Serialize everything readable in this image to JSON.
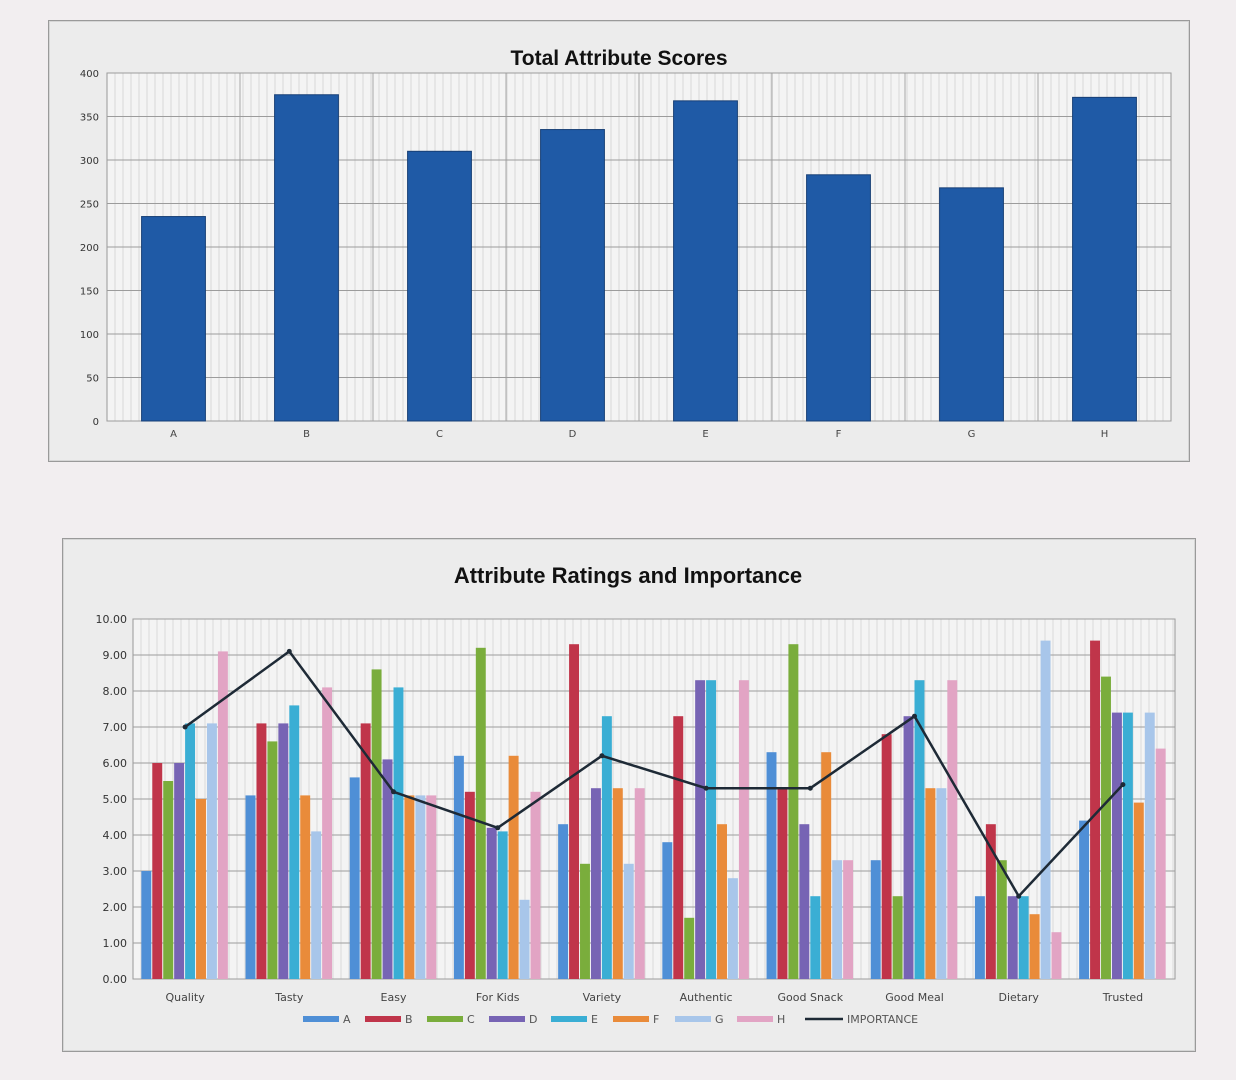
{
  "chart_data": [
    {
      "type": "bar",
      "title": "Total Attribute Scores",
      "categories": [
        "A",
        "B",
        "C",
        "D",
        "E",
        "F",
        "G",
        "H"
      ],
      "values": [
        235,
        375,
        310,
        335,
        368,
        283,
        268,
        372
      ],
      "ylim": [
        0,
        400
      ],
      "yticks": [
        "0",
        "50",
        "100",
        "150",
        "200",
        "250",
        "300",
        "350",
        "400"
      ],
      "grid": true,
      "color": "#1f5aa6"
    },
    {
      "type": "bar",
      "title": "Attribute Ratings and Importance",
      "categories": [
        "Quality",
        "Tasty",
        "Easy",
        "For Kids",
        "Variety",
        "Authentic",
        "Good Snack",
        "Good Meal",
        "Dietary",
        "Trusted"
      ],
      "ylim": [
        0,
        10
      ],
      "yticks": [
        "0.00",
        "1.00",
        "2.00",
        "3.00",
        "4.00",
        "5.00",
        "6.00",
        "7.00",
        "8.00",
        "9.00",
        "10.00"
      ],
      "grid": true,
      "legend_position": "bottom",
      "series": [
        {
          "name": "A",
          "color": "#4f8fd6",
          "values": [
            3.0,
            5.1,
            5.6,
            6.2,
            4.3,
            3.8,
            6.3,
            3.3,
            2.3,
            4.4
          ]
        },
        {
          "name": "B",
          "color": "#c0354a",
          "values": [
            6.0,
            7.1,
            7.1,
            5.2,
            9.3,
            7.3,
            5.3,
            6.8,
            4.3,
            9.4
          ]
        },
        {
          "name": "C",
          "color": "#7aad3c",
          "values": [
            5.5,
            6.6,
            8.6,
            9.2,
            3.2,
            1.7,
            9.3,
            2.3,
            3.3,
            8.4
          ]
        },
        {
          "name": "D",
          "color": "#7764b4",
          "values": [
            6.0,
            7.1,
            6.1,
            4.2,
            5.3,
            8.3,
            4.3,
            7.3,
            2.3,
            7.4
          ]
        },
        {
          "name": "E",
          "color": "#3aaed4",
          "values": [
            7.1,
            7.6,
            8.1,
            4.1,
            7.3,
            8.3,
            2.3,
            8.3,
            2.3,
            7.4
          ]
        },
        {
          "name": "F",
          "color": "#e98b3a",
          "values": [
            5.0,
            5.1,
            5.1,
            6.2,
            5.3,
            4.3,
            6.3,
            5.3,
            1.8,
            4.9
          ]
        },
        {
          "name": "G",
          "color": "#a8c6ea",
          "values": [
            7.1,
            4.1,
            5.1,
            2.2,
            3.2,
            2.8,
            3.3,
            5.3,
            9.4,
            7.4
          ]
        },
        {
          "name": "H",
          "color": "#e2a4c4",
          "values": [
            9.1,
            8.1,
            5.1,
            5.2,
            5.3,
            8.3,
            3.3,
            8.3,
            1.3,
            6.4
          ]
        }
      ],
      "importance": {
        "name": "IMPORTANCE",
        "color": "#1e2a36",
        "values": [
          7.0,
          9.1,
          5.2,
          4.2,
          6.2,
          5.3,
          5.3,
          7.3,
          2.3,
          5.4
        ]
      }
    }
  ]
}
